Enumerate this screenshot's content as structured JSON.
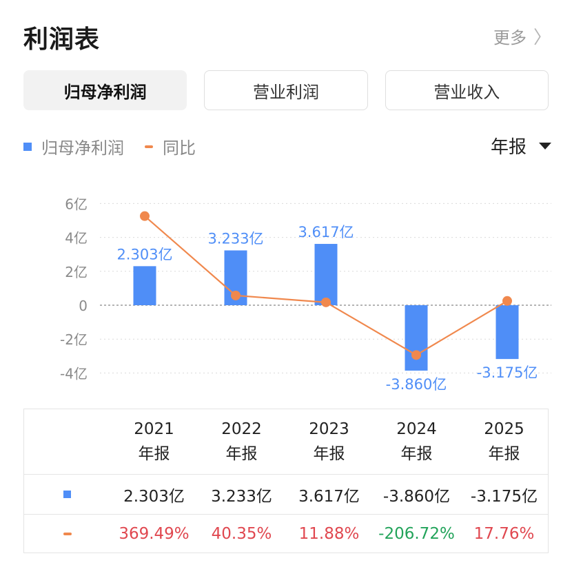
{
  "header": {
    "title": "利润表",
    "more_label": "更多",
    "more_icon": "chevron-right-icon"
  },
  "tabs": [
    {
      "label": "归母净利润",
      "active": true
    },
    {
      "label": "营业利润",
      "active": false
    },
    {
      "label": "营业收入",
      "active": false
    }
  ],
  "legend": {
    "bar_label": "归母净利润",
    "line_label": "同比"
  },
  "period_selector": {
    "value": "年报",
    "icon": "caret-down-icon"
  },
  "colors": {
    "bar": "#4f8ef7",
    "line": "#f0884d",
    "bar_label": "#4f8ef7",
    "positive": "#e0474f",
    "negative": "#22a35a",
    "grid": "#d9d9d9"
  },
  "chart_data": {
    "type": "bar",
    "categories": [
      "2021",
      "2022",
      "2023",
      "2024",
      "2025"
    ],
    "y_tick_labels": [
      "6亿",
      "4亿",
      "2亿",
      "0",
      "-2亿",
      "-4亿"
    ],
    "y_ticks": [
      6,
      4,
      2,
      0,
      -2,
      -4
    ],
    "ylim": [
      -4,
      6
    ],
    "unit": "亿",
    "series": [
      {
        "name": "归母净利润",
        "type": "bar",
        "values": [
          2.303,
          3.233,
          3.617,
          -3.86,
          -3.175
        ],
        "labels": [
          "2.303亿",
          "3.233亿",
          "3.617亿",
          "-3.860亿",
          "-3.175亿"
        ]
      },
      {
        "name": "同比",
        "type": "line",
        "values": [
          369.49,
          40.35,
          11.88,
          -206.72,
          17.76
        ]
      }
    ],
    "grid": true
  },
  "table": {
    "columns": [
      {
        "year": "2021",
        "period": "年报",
        "value": "2.303亿",
        "yoy": "369.49%",
        "yoy_sign": "pos"
      },
      {
        "year": "2022",
        "period": "年报",
        "value": "3.233亿",
        "yoy": "40.35%",
        "yoy_sign": "pos"
      },
      {
        "year": "2023",
        "period": "年报",
        "value": "3.617亿",
        "yoy": "11.88%",
        "yoy_sign": "pos"
      },
      {
        "year": "2024",
        "period": "年报",
        "value": "-3.860亿",
        "yoy": "-206.72%",
        "yoy_sign": "neg"
      },
      {
        "year": "2025",
        "period": "年报",
        "value": "-3.175亿",
        "yoy": "17.76%",
        "yoy_sign": "pos"
      }
    ]
  }
}
